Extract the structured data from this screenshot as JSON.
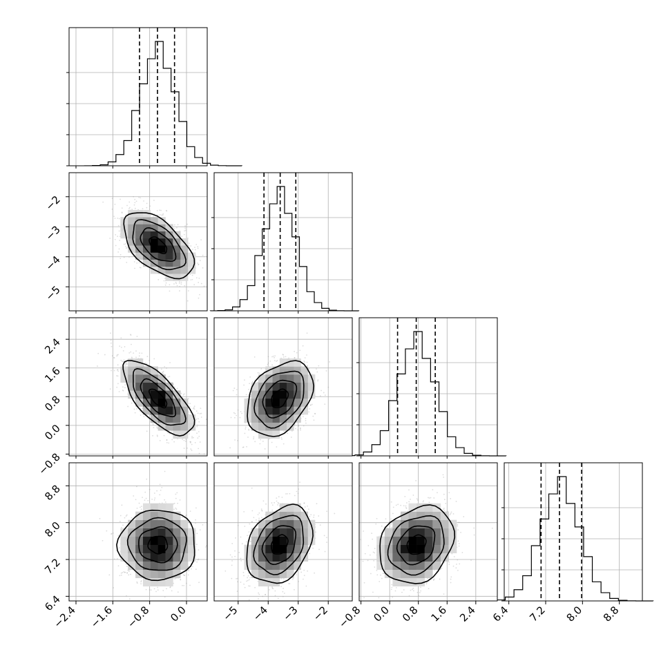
{
  "chart_data": {
    "type": "corner",
    "parameters": 4,
    "grid": true,
    "quantile_lines": "dashed",
    "colors": {
      "line": "#000000",
      "grid": "#b0b0b0",
      "scatter": "#9a9a9a",
      "density_max": "#000000"
    },
    "params": [
      {
        "index": 0,
        "mean": -0.62,
        "sd": 0.38,
        "range": [
          -2.55,
          0.45
        ],
        "quantiles": [
          -1.02,
          -0.63,
          -0.26
        ],
        "ticks": [
          -2.4,
          -1.6,
          -0.8,
          0.0
        ],
        "tick_labels": [
          "−2.4",
          "−1.6",
          "−0.8",
          "0.0"
        ]
      },
      {
        "index": 1,
        "mean": -3.62,
        "sd": 0.55,
        "range": [
          -5.8,
          -1.2
        ],
        "quantiles": [
          -4.14,
          -3.6,
          -3.08
        ],
        "ticks": [
          -5,
          -4,
          -3,
          -2
        ],
        "tick_labels": [
          "−5",
          "−4",
          "−3",
          "−2"
        ]
      },
      {
        "index": 2,
        "mean": 0.75,
        "sd": 0.52,
        "range": [
          -0.85,
          3.0
        ],
        "quantiles": [
          0.22,
          0.74,
          1.27
        ],
        "ticks": [
          -0.8,
          0.0,
          0.8,
          1.6,
          2.4
        ],
        "tick_labels": [
          "−0.8",
          "0.0",
          "0.8",
          "1.6",
          "2.4"
        ]
      },
      {
        "index": 3,
        "mean": 7.52,
        "sd": 0.42,
        "range": [
          6.3,
          9.3
        ],
        "quantiles": [
          7.1,
          7.5,
          7.98
        ],
        "ticks": [
          6.4,
          7.2,
          8.0,
          8.8
        ],
        "tick_labels": [
          "6.4",
          "7.2",
          "8.0",
          "8.8"
        ]
      }
    ],
    "correlations": [
      {
        "pair": [
          0,
          1
        ],
        "r": -0.55
      },
      {
        "pair": [
          0,
          2
        ],
        "r": -0.7
      },
      {
        "pair": [
          1,
          2
        ],
        "r": 0.35
      },
      {
        "pair": [
          0,
          3
        ],
        "r": 0.0
      },
      {
        "pair": [
          1,
          3
        ],
        "r": 0.3
      },
      {
        "pair": [
          2,
          3
        ],
        "r": 0.22
      }
    ],
    "contour_levels_sigma": [
      0.5,
      1.0,
      1.5,
      2.0
    ]
  }
}
